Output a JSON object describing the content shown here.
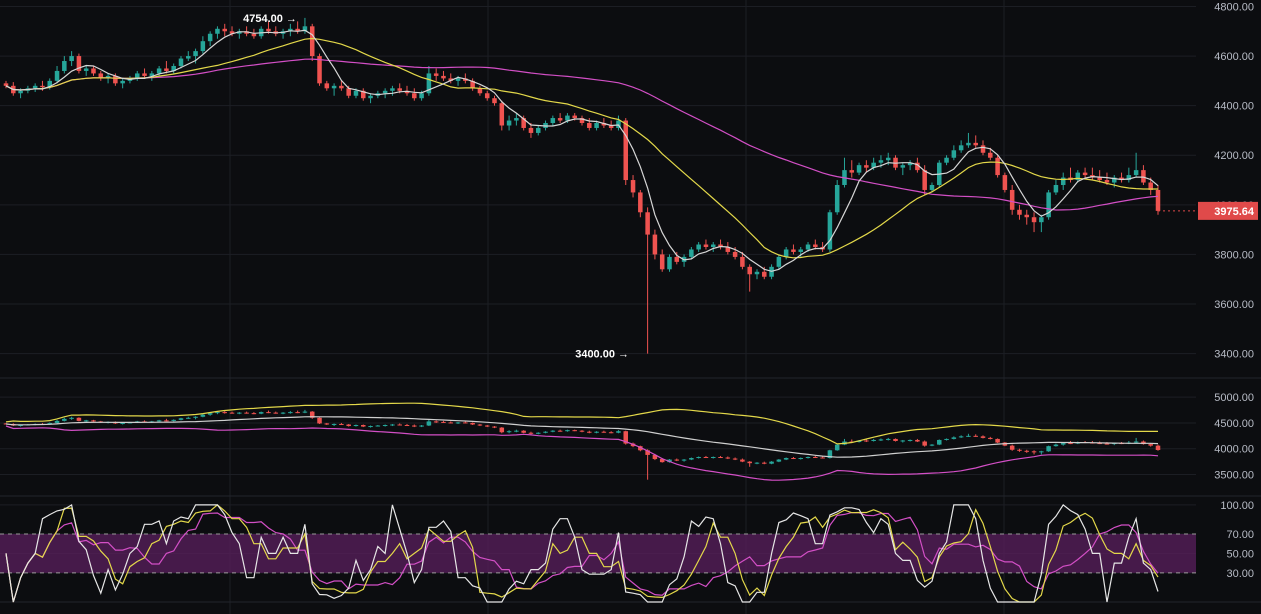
{
  "colors": {
    "background": "#0c0d10",
    "grid": "#1c1e24",
    "up": "#26a69a",
    "down": "#ef5350",
    "ma_fast": "#d6d6d6",
    "ma_mid": "#e3d84a",
    "ma_slow": "#d34fc6",
    "bb_upper": "#e3d84a",
    "bb_mid": "#cfcfcf",
    "bb_lower": "#d34fc6",
    "rsi_band": "#5a1f5e",
    "rsi_white": "#e6e6e6",
    "rsi_yellow": "#e3d84a",
    "rsi_pink": "#d34fc6",
    "price_tag": "#e04a4a"
  },
  "chart_data": [
    {
      "type": "candlestick",
      "panel": "price",
      "y_ticks": [
        "4800.00",
        "4600.00",
        "4400.00",
        "4200.00",
        "4000.00",
        "3800.00",
        "3600.00",
        "3400.00"
      ],
      "y_tick_values": [
        4800,
        4600,
        4400,
        4200,
        4000,
        3800,
        3600,
        3400
      ],
      "ylim": [
        3350,
        4810
      ],
      "annotations": [
        {
          "text": "4754.00 →",
          "value": 4754,
          "index": 41
        },
        {
          "text": "3400.00 →",
          "value": 3400,
          "index": 86
        }
      ],
      "last_price_label": "3975.64",
      "last_price": 3975.64,
      "candles": [
        [
          4490,
          4500,
          4470,
          4480
        ],
        [
          4480,
          4495,
          4440,
          4450
        ],
        [
          4450,
          4470,
          4430,
          4460
        ],
        [
          4460,
          4480,
          4450,
          4470
        ],
        [
          4470,
          4490,
          4455,
          4480
        ],
        [
          4480,
          4500,
          4460,
          4475
        ],
        [
          4475,
          4510,
          4465,
          4500
        ],
        [
          4500,
          4560,
          4490,
          4540
        ],
        [
          4540,
          4600,
          4530,
          4580
        ],
        [
          4580,
          4620,
          4560,
          4600
        ],
        [
          4600,
          4610,
          4530,
          4540
        ],
        [
          4540,
          4560,
          4520,
          4550
        ],
        [
          4550,
          4560,
          4520,
          4530
        ],
        [
          4530,
          4540,
          4500,
          4510
        ],
        [
          4510,
          4530,
          4490,
          4520
        ],
        [
          4520,
          4530,
          4480,
          4490
        ],
        [
          4490,
          4510,
          4470,
          4500
        ],
        [
          4500,
          4520,
          4490,
          4510
        ],
        [
          4510,
          4540,
          4500,
          4530
        ],
        [
          4530,
          4550,
          4510,
          4520
        ],
        [
          4520,
          4540,
          4500,
          4530
        ],
        [
          4530,
          4560,
          4520,
          4550
        ],
        [
          4550,
          4580,
          4530,
          4540
        ],
        [
          4540,
          4570,
          4530,
          4560
        ],
        [
          4560,
          4600,
          4550,
          4590
        ],
        [
          4590,
          4620,
          4580,
          4600
        ],
        [
          4600,
          4630,
          4570,
          4620
        ],
        [
          4620,
          4680,
          4610,
          4660
        ],
        [
          4660,
          4700,
          4640,
          4690
        ],
        [
          4690,
          4720,
          4670,
          4710
        ],
        [
          4710,
          4730,
          4680,
          4700
        ],
        [
          4700,
          4720,
          4680,
          4690
        ],
        [
          4690,
          4710,
          4670,
          4700
        ],
        [
          4700,
          4720,
          4680,
          4690
        ],
        [
          4690,
          4710,
          4670,
          4680
        ],
        [
          4680,
          4720,
          4670,
          4710
        ],
        [
          4710,
          4740,
          4690,
          4700
        ],
        [
          4700,
          4720,
          4680,
          4690
        ],
        [
          4690,
          4710,
          4670,
          4700
        ],
        [
          4700,
          4730,
          4680,
          4710
        ],
        [
          4710,
          4740,
          4690,
          4700
        ],
        [
          4700,
          4754,
          4690,
          4720
        ],
        [
          4720,
          4730,
          4580,
          4600
        ],
        [
          4600,
          4610,
          4480,
          4490
        ],
        [
          4490,
          4500,
          4460,
          4470
        ],
        [
          4470,
          4490,
          4440,
          4480
        ],
        [
          4480,
          4500,
          4460,
          4470
        ],
        [
          4470,
          4480,
          4430,
          4440
        ],
        [
          4440,
          4470,
          4430,
          4460
        ],
        [
          4460,
          4470,
          4420,
          4430
        ],
        [
          4430,
          4450,
          4410,
          4440
        ],
        [
          4440,
          4460,
          4430,
          4450
        ],
        [
          4450,
          4470,
          4430,
          4460
        ],
        [
          4460,
          4480,
          4440,
          4470
        ],
        [
          4470,
          4490,
          4450,
          4460
        ],
        [
          4460,
          4480,
          4440,
          4450
        ],
        [
          4450,
          4470,
          4420,
          4430
        ],
        [
          4430,
          4460,
          4420,
          4450
        ],
        [
          4450,
          4560,
          4440,
          4530
        ],
        [
          4530,
          4550,
          4500,
          4520
        ],
        [
          4520,
          4540,
          4500,
          4510
        ],
        [
          4510,
          4530,
          4490,
          4500
        ],
        [
          4500,
          4520,
          4480,
          4510
        ],
        [
          4510,
          4530,
          4490,
          4500
        ],
        [
          4500,
          4510,
          4460,
          4470
        ],
        [
          4470,
          4480,
          4440,
          4450
        ],
        [
          4450,
          4460,
          4420,
          4430
        ],
        [
          4430,
          4440,
          4400,
          4410
        ],
        [
          4410,
          4420,
          4300,
          4320
        ],
        [
          4320,
          4360,
          4300,
          4340
        ],
        [
          4340,
          4370,
          4320,
          4350
        ],
        [
          4350,
          4360,
          4300,
          4310
        ],
        [
          4310,
          4330,
          4270,
          4290
        ],
        [
          4290,
          4320,
          4280,
          4310
        ],
        [
          4310,
          4340,
          4300,
          4330
        ],
        [
          4330,
          4360,
          4320,
          4350
        ],
        [
          4350,
          4370,
          4330,
          4340
        ],
        [
          4340,
          4370,
          4330,
          4360
        ],
        [
          4360,
          4370,
          4340,
          4350
        ],
        [
          4350,
          4360,
          4320,
          4330
        ],
        [
          4330,
          4350,
          4300,
          4310
        ],
        [
          4310,
          4340,
          4300,
          4330
        ],
        [
          4330,
          4350,
          4310,
          4320
        ],
        [
          4320,
          4340,
          4300,
          4310
        ],
        [
          4310,
          4360,
          4300,
          4340
        ],
        [
          4340,
          4350,
          4080,
          4100
        ],
        [
          4100,
          4120,
          4030,
          4050
        ],
        [
          4050,
          4060,
          3950,
          3970
        ],
        [
          3970,
          3990,
          3400,
          3880
        ],
        [
          3880,
          3900,
          3780,
          3800
        ],
        [
          3800,
          3820,
          3730,
          3740
        ],
        [
          3740,
          3800,
          3730,
          3790
        ],
        [
          3790,
          3810,
          3760,
          3770
        ],
        [
          3770,
          3800,
          3750,
          3790
        ],
        [
          3790,
          3830,
          3780,
          3820
        ],
        [
          3820,
          3850,
          3810,
          3840
        ],
        [
          3840,
          3860,
          3820,
          3830
        ],
        [
          3830,
          3850,
          3810,
          3840
        ],
        [
          3840,
          3860,
          3820,
          3830
        ],
        [
          3830,
          3850,
          3800,
          3810
        ],
        [
          3810,
          3830,
          3780,
          3790
        ],
        [
          3790,
          3810,
          3740,
          3750
        ],
        [
          3750,
          3760,
          3650,
          3720
        ],
        [
          3720,
          3740,
          3700,
          3730
        ],
        [
          3730,
          3750,
          3700,
          3710
        ],
        [
          3710,
          3760,
          3700,
          3750
        ],
        [
          3750,
          3800,
          3740,
          3790
        ],
        [
          3790,
          3830,
          3780,
          3820
        ],
        [
          3820,
          3840,
          3800,
          3810
        ],
        [
          3810,
          3830,
          3790,
          3820
        ],
        [
          3820,
          3850,
          3810,
          3840
        ],
        [
          3840,
          3860,
          3820,
          3830
        ],
        [
          3830,
          3850,
          3810,
          3820
        ],
        [
          3820,
          3980,
          3810,
          3970
        ],
        [
          3970,
          4100,
          3960,
          4080
        ],
        [
          4080,
          4190,
          4070,
          4140
        ],
        [
          4140,
          4180,
          4110,
          4130
        ],
        [
          4130,
          4170,
          4120,
          4160
        ],
        [
          4160,
          4180,
          4130,
          4150
        ],
        [
          4150,
          4190,
          4140,
          4170
        ],
        [
          4170,
          4200,
          4150,
          4180
        ],
        [
          4180,
          4210,
          4160,
          4190
        ],
        [
          4190,
          4200,
          4140,
          4150
        ],
        [
          4150,
          4170,
          4120,
          4160
        ],
        [
          4160,
          4180,
          4140,
          4170
        ],
        [
          4170,
          4190,
          4130,
          4140
        ],
        [
          4140,
          4160,
          4040,
          4060
        ],
        [
          4060,
          4090,
          4050,
          4080
        ],
        [
          4080,
          4180,
          4070,
          4170
        ],
        [
          4170,
          4200,
          4160,
          4190
        ],
        [
          4190,
          4240,
          4180,
          4220
        ],
        [
          4220,
          4260,
          4210,
          4240
        ],
        [
          4240,
          4290,
          4230,
          4250
        ],
        [
          4250,
          4280,
          4230,
          4240
        ],
        [
          4240,
          4260,
          4200,
          4210
        ],
        [
          4210,
          4230,
          4180,
          4190
        ],
        [
          4190,
          4200,
          4110,
          4120
        ],
        [
          4120,
          4130,
          4050,
          4060
        ],
        [
          4060,
          4080,
          3960,
          3980
        ],
        [
          3980,
          4000,
          3940,
          3960
        ],
        [
          3960,
          3980,
          3920,
          3950
        ],
        [
          3950,
          3970,
          3890,
          3930
        ],
        [
          3930,
          3960,
          3890,
          3950
        ],
        [
          3950,
          4060,
          3940,
          4050
        ],
        [
          4050,
          4100,
          4040,
          4080
        ],
        [
          4080,
          4130,
          4060,
          4110
        ],
        [
          4110,
          4150,
          4090,
          4100
        ],
        [
          4100,
          4140,
          4090,
          4130
        ],
        [
          4130,
          4150,
          4110,
          4120
        ],
        [
          4120,
          4150,
          4100,
          4110
        ],
        [
          4110,
          4140,
          4090,
          4100
        ],
        [
          4100,
          4130,
          4080,
          4090
        ],
        [
          4090,
          4120,
          4070,
          4110
        ],
        [
          4110,
          4130,
          4090,
          4100
        ],
        [
          4100,
          4150,
          4090,
          4120
        ],
        [
          4120,
          4210,
          4110,
          4140
        ],
        [
          4140,
          4160,
          4080,
          4090
        ],
        [
          4090,
          4110,
          4040,
          4060
        ],
        [
          4060,
          4080,
          3960,
          3975.64
        ]
      ]
    },
    {
      "type": "line",
      "panel": "overview",
      "y_ticks": [
        "5000.00",
        "4500.00",
        "4000.00",
        "3500.00"
      ],
      "y_tick_values": [
        5000,
        4500,
        4000,
        3500
      ],
      "ylim": [
        3200,
        5100
      ]
    },
    {
      "type": "line",
      "panel": "rsi",
      "y_ticks": [
        "100.00",
        "70.00",
        "50.00",
        "30.00"
      ],
      "y_tick_values": [
        100,
        70,
        50,
        30
      ],
      "ylim": [
        0,
        105
      ],
      "band": [
        30,
        70
      ]
    }
  ]
}
